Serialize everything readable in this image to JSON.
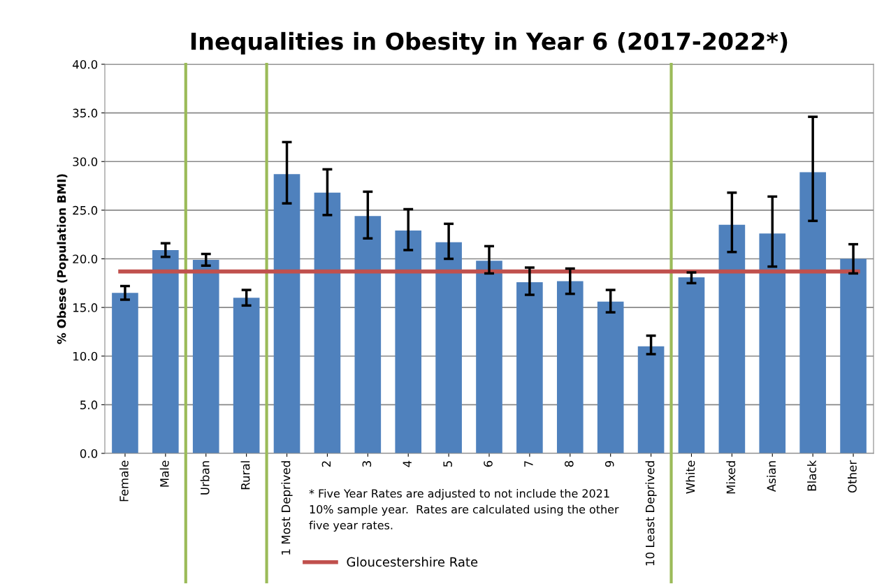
{
  "chart_data": {
    "type": "bar",
    "title": "Inequalities in Obesity in Year 6 (2017-2022*)",
    "ylabel": "% Obese (Population BMI)",
    "categories": [
      "Female",
      "Male",
      "Urban",
      "Rural",
      "1 Most Deprived",
      "2",
      "3",
      "4",
      "5",
      "6",
      "7",
      "8",
      "9",
      "10 Least Deprived",
      "White",
      "Mixed",
      "Asian",
      "Black",
      "Other"
    ],
    "values": [
      16.5,
      20.9,
      19.9,
      16.0,
      28.7,
      26.8,
      24.4,
      22.9,
      21.7,
      19.8,
      17.6,
      17.7,
      15.6,
      11.0,
      18.1,
      23.5,
      22.6,
      28.9,
      20.0
    ],
    "errors": [
      [
        15.8,
        17.2
      ],
      [
        20.2,
        21.6
      ],
      [
        19.3,
        20.5
      ],
      [
        15.2,
        16.8
      ],
      [
        25.7,
        32.0
      ],
      [
        24.5,
        29.2
      ],
      [
        22.1,
        26.9
      ],
      [
        20.9,
        25.1
      ],
      [
        20.0,
        23.6
      ],
      [
        18.5,
        21.3
      ],
      [
        16.3,
        19.1
      ],
      [
        16.4,
        19.0
      ],
      [
        14.5,
        16.8
      ],
      [
        10.2,
        12.1
      ],
      [
        17.5,
        18.6
      ],
      [
        20.7,
        26.8
      ],
      [
        19.2,
        26.4
      ],
      [
        23.9,
        34.6
      ],
      [
        18.5,
        21.5
      ]
    ],
    "color": "#4f81bd",
    "ylim": [
      0,
      40
    ],
    "yticks": [
      {
        "value": 0,
        "label": "0.0"
      },
      {
        "value": 5,
        "label": "5.0"
      },
      {
        "value": 10,
        "label": "10.0"
      },
      {
        "value": 15,
        "label": "15.0"
      },
      {
        "value": 20,
        "label": "20.0"
      },
      {
        "value": 25,
        "label": "25.0"
      },
      {
        "value": 30,
        "label": "30.0"
      },
      {
        "value": 35,
        "label": "35.0"
      },
      {
        "value": 40,
        "label": "40.0"
      }
    ],
    "grid": "y",
    "ref_lines": [
      {
        "axis": "y",
        "value": 18.7,
        "label": "Gloucestershire Rate",
        "color": "#c0504d"
      }
    ],
    "legend": "bottom",
    "annotations": [
      "* Five Year Rates are adjusted to not include the 2021 10% sample year.  Rates are calculated using the other five year rates."
    ]
  }
}
